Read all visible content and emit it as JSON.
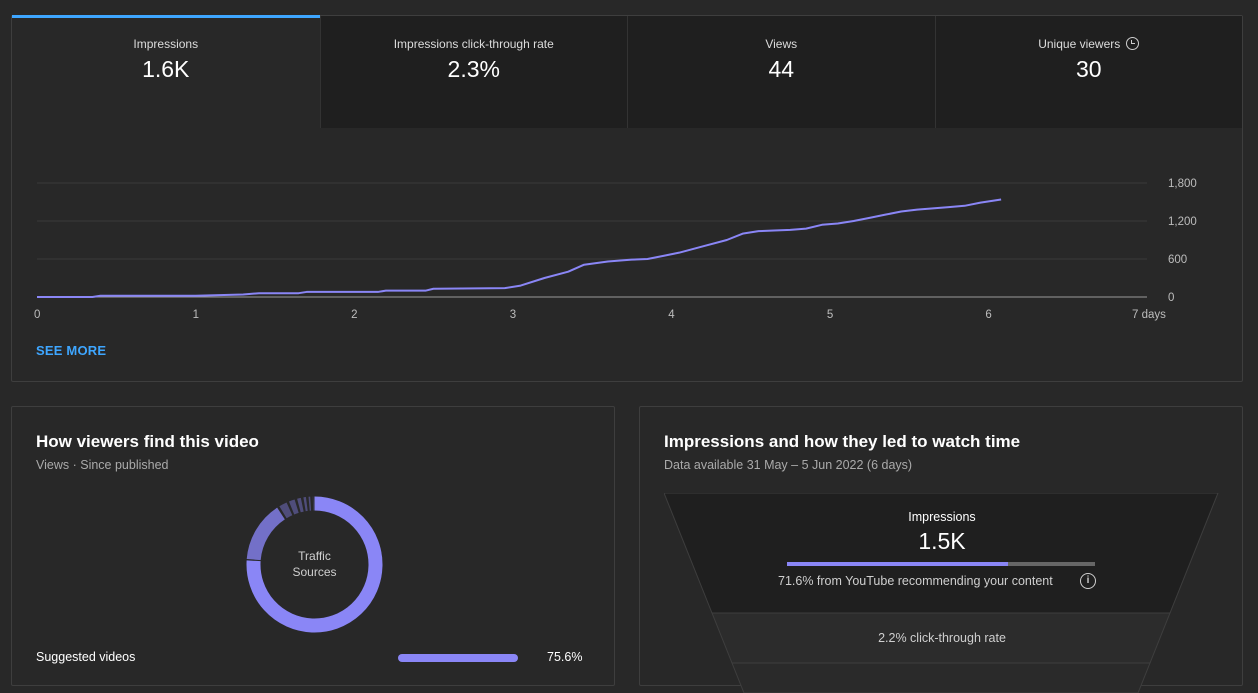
{
  "metrics": [
    {
      "label": "Impressions",
      "value": "1.6K"
    },
    {
      "label": "Impressions click-through rate",
      "value": "2.3%"
    },
    {
      "label": "Views",
      "value": "44"
    },
    {
      "label": "Unique viewers",
      "value": "30"
    }
  ],
  "see_more": "SEE MORE",
  "chart_data": {
    "type": "line",
    "title": "",
    "xlabel": "",
    "ylabel": "",
    "x_ticks": [
      "0",
      "1",
      "2",
      "3",
      "4",
      "5",
      "6",
      "7 days"
    ],
    "y_ticks": [
      "0",
      "600",
      "1,200",
      "1,800"
    ],
    "xlim": [
      0,
      7
    ],
    "ylim": [
      0,
      1800
    ],
    "series": [
      {
        "color": "#8a86f6",
        "x": [
          0,
          0.35,
          0.4,
          1.0,
          1.3,
          1.4,
          1.65,
          1.7,
          2.15,
          2.2,
          2.45,
          2.5,
          2.95,
          3.05,
          3.2,
          3.35,
          3.45,
          3.6,
          3.75,
          3.85,
          3.95,
          4.05,
          4.2,
          4.35,
          4.45,
          4.55,
          4.65,
          4.75,
          4.85,
          4.95,
          5.05,
          5.15,
          5.25,
          5.35,
          5.45,
          5.55,
          5.65,
          5.75,
          5.85,
          5.95,
          6.08
        ],
        "y": [
          0,
          0,
          20,
          20,
          40,
          60,
          60,
          80,
          80,
          100,
          100,
          130,
          140,
          180,
          300,
          400,
          510,
          560,
          590,
          600,
          650,
          700,
          800,
          900,
          1000,
          1040,
          1050,
          1060,
          1080,
          1140,
          1160,
          1200,
          1250,
          1300,
          1350,
          1380,
          1400,
          1420,
          1440,
          1490,
          1540
        ]
      }
    ]
  },
  "left_card": {
    "title": "How viewers find this video",
    "subtitle": "Views · Since published",
    "donut_label_1": "Traffic",
    "donut_label_2": "Sources",
    "donut_colors": {
      "primary": "#8a86f6",
      "secondary": "#7370c8",
      "tail": "#4f4d7a"
    },
    "donut_segments": [
      75.6,
      15.0,
      2.5,
      2.0,
      1.5,
      1.2,
      1.0,
      0.7
    ],
    "rows": [
      {
        "label": "Suggested videos",
        "percent": "75.6%",
        "fraction": 0.756
      }
    ]
  },
  "right_card": {
    "title": "Impressions and how they led to watch time",
    "subtitle": "Data available 31 May – 5 Jun 2022 (6 days)",
    "funnel_title": "Impressions",
    "funnel_value": "1.5K",
    "funnel_fill_fraction": 0.716,
    "funnel_note": "71.6% from YouTube recommending your content",
    "ctr_text": "2.2% click-through rate",
    "accent": "#8a86f6"
  }
}
